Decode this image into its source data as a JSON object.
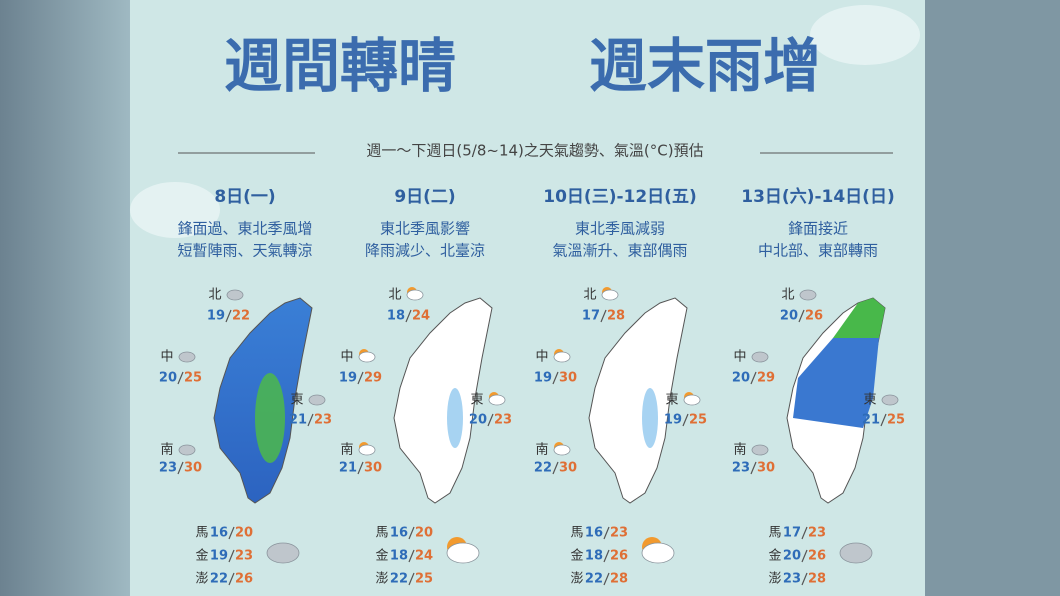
{
  "title": [
    "週間轉晴",
    "週末雨增"
  ],
  "subtitle": "週一～下週日(5/8~14)之天氣趨勢、氣溫(°C)預估",
  "days": [
    {
      "date": "8日(一)",
      "description": [
        "鋒面過、東北季風增",
        "短暫陣雨、天氣轉涼"
      ],
      "regions": [
        {
          "name": "北",
          "low": 19,
          "high": 22
        },
        {
          "name": "中",
          "low": 20,
          "high": 25
        },
        {
          "name": "東",
          "low": 21,
          "high": 23
        },
        {
          "name": "南",
          "low": 23,
          "high": 30
        }
      ],
      "islands": [
        {
          "name": "馬",
          "low": 16,
          "high": 20
        },
        {
          "name": "金",
          "low": 19,
          "high": 23
        },
        {
          "name": "澎",
          "low": 22,
          "high": 26
        }
      ]
    },
    {
      "date": "9日(二)",
      "description": [
        "東北季風影響",
        "降雨減少、北臺涼"
      ],
      "regions": [
        {
          "name": "北",
          "low": 18,
          "high": 24
        },
        {
          "name": "中",
          "low": 19,
          "high": 29
        },
        {
          "name": "東",
          "low": 20,
          "high": 23
        },
        {
          "name": "南",
          "low": 21,
          "high": 30
        }
      ],
      "islands": [
        {
          "name": "馬",
          "low": 16,
          "high": 20
        },
        {
          "name": "金",
          "low": 18,
          "high": 24
        },
        {
          "name": "澎",
          "low": 22,
          "high": 25
        }
      ]
    },
    {
      "date": "10日(三)-12日(五)",
      "description": [
        "東北季風減弱",
        "氣溫漸升、東部偶雨"
      ],
      "regions": [
        {
          "name": "北",
          "low": 17,
          "high": 28
        },
        {
          "name": "中",
          "low": 19,
          "high": 30
        },
        {
          "name": "東",
          "low": 19,
          "high": 25
        },
        {
          "name": "南",
          "low": 22,
          "high": 30
        }
      ],
      "islands": [
        {
          "name": "馬",
          "low": 16,
          "high": 23
        },
        {
          "name": "金",
          "low": 18,
          "high": 26
        },
        {
          "name": "澎",
          "low": 22,
          "high": 28
        }
      ]
    },
    {
      "date": "13日(六)-14日(日)",
      "description": [
        "鋒面接近",
        "中北部、東部轉雨"
      ],
      "regions": [
        {
          "name": "北",
          "low": 20,
          "high": 26
        },
        {
          "name": "中",
          "low": 20,
          "high": 29
        },
        {
          "name": "東",
          "low": 21,
          "high": 25
        },
        {
          "name": "南",
          "low": 23,
          "high": 30
        }
      ],
      "islands": [
        {
          "name": "馬",
          "low": 17,
          "high": 23
        },
        {
          "name": "金",
          "low": 20,
          "high": 26
        },
        {
          "name": "澎",
          "low": 23,
          "high": 28
        }
      ]
    }
  ]
}
